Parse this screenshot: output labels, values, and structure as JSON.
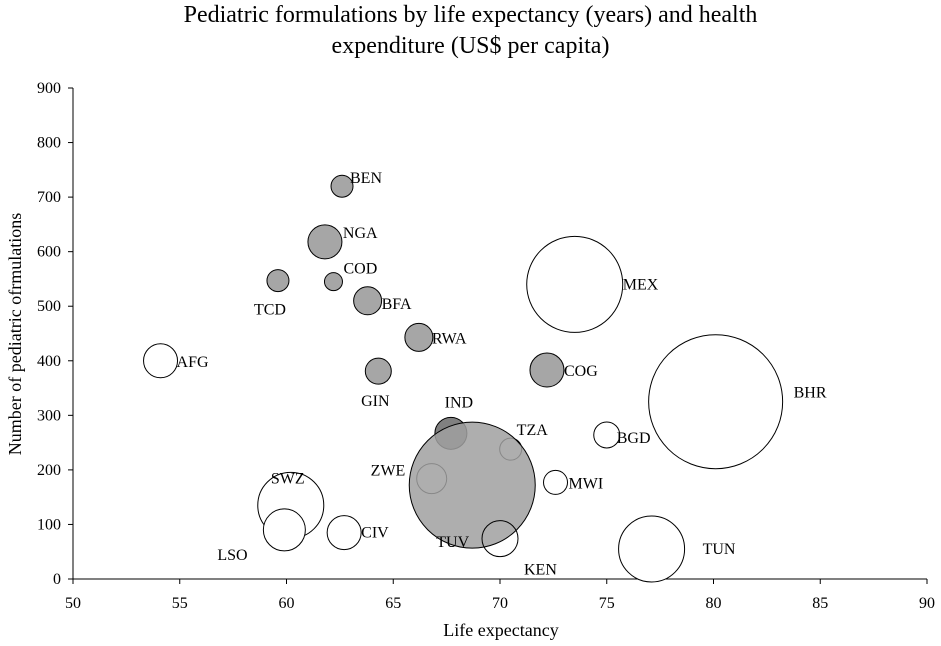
{
  "chart_data": {
    "type": "bubble",
    "title_lines": [
      "Pediatric formulations by life expectancy (years) and health",
      "expenditure (US$ per capita)"
    ],
    "xlabel": "Life expectancy",
    "ylabel": "Number of pediatric ofrmulations",
    "xlim": [
      50,
      90
    ],
    "ylim": [
      0,
      900
    ],
    "x_ticks": [
      50,
      55,
      60,
      65,
      70,
      75,
      80,
      85,
      90
    ],
    "y_ticks": [
      0,
      100,
      200,
      300,
      400,
      500,
      600,
      700,
      800,
      900
    ],
    "grid": false,
    "bubble_size_meaning": "health expenditure (US$ per capita)",
    "points": [
      {
        "label": "BEN",
        "x": 62.6,
        "y": 720,
        "size": 11,
        "fill": "#a6a6a6"
      },
      {
        "label": "NGA",
        "x": 61.8,
        "y": 618,
        "size": 17,
        "fill": "#a6a6a6"
      },
      {
        "label": "COD",
        "x": 62.2,
        "y": 545,
        "size": 9,
        "fill": "#a6a6a6"
      },
      {
        "label": "TCD",
        "x": 59.6,
        "y": 547,
        "size": 11,
        "fill": "#a6a6a6"
      },
      {
        "label": "BFA",
        "x": 63.8,
        "y": 510,
        "size": 14,
        "fill": "#a6a6a6"
      },
      {
        "label": "RWA",
        "x": 66.2,
        "y": 443,
        "size": 14,
        "fill": "#a6a6a6"
      },
      {
        "label": "GIN",
        "x": 64.3,
        "y": 381,
        "size": 13,
        "fill": "#a6a6a6"
      },
      {
        "label": "COG",
        "x": 72.2,
        "y": 383,
        "size": 17,
        "fill": "#a6a6a6"
      },
      {
        "label": "IND",
        "x": 67.7,
        "y": 267,
        "size": 16,
        "fill": "#808080"
      },
      {
        "label": "AFG",
        "x": 54.1,
        "y": 400,
        "size": 17,
        "fill": "#ffffff"
      },
      {
        "label": "MEX",
        "x": 73.5,
        "y": 540,
        "size": 48,
        "fill": "#ffffff"
      },
      {
        "label": "BHR",
        "x": 80.1,
        "y": 325,
        "size": 67,
        "fill": "#ffffff"
      },
      {
        "label": "TZA",
        "x": 70.5,
        "y": 238,
        "size": 11,
        "fill": "#ffffff"
      },
      {
        "label": "BGD",
        "x": 75.0,
        "y": 264,
        "size": 13,
        "fill": "#ffffff"
      },
      {
        "label": "MWI",
        "x": 72.6,
        "y": 177,
        "size": 12,
        "fill": "#ffffff"
      },
      {
        "label": "ZWE",
        "x": 66.8,
        "y": 184,
        "size": 15,
        "fill": "#ffffff"
      },
      {
        "label": "SWZ",
        "x": 60.2,
        "y": 135,
        "size": 33,
        "fill": "#ffffff"
      },
      {
        "label": "LSO",
        "x": 59.9,
        "y": 90,
        "size": 21,
        "fill": "#ffffff"
      },
      {
        "label": "CIV",
        "x": 62.7,
        "y": 85,
        "size": 17,
        "fill": "#ffffff"
      },
      {
        "label": "TUV",
        "x": 68.7,
        "y": 172,
        "size": 63,
        "fill": "rgba(160,160,160,0.85)"
      },
      {
        "label": "KEN",
        "x": 70.0,
        "y": 74,
        "size": 18,
        "fill": "rgba(255,255,255,0)"
      },
      {
        "label": "TUN",
        "x": 77.1,
        "y": 55,
        "size": 33,
        "fill": "#ffffff"
      }
    ]
  }
}
